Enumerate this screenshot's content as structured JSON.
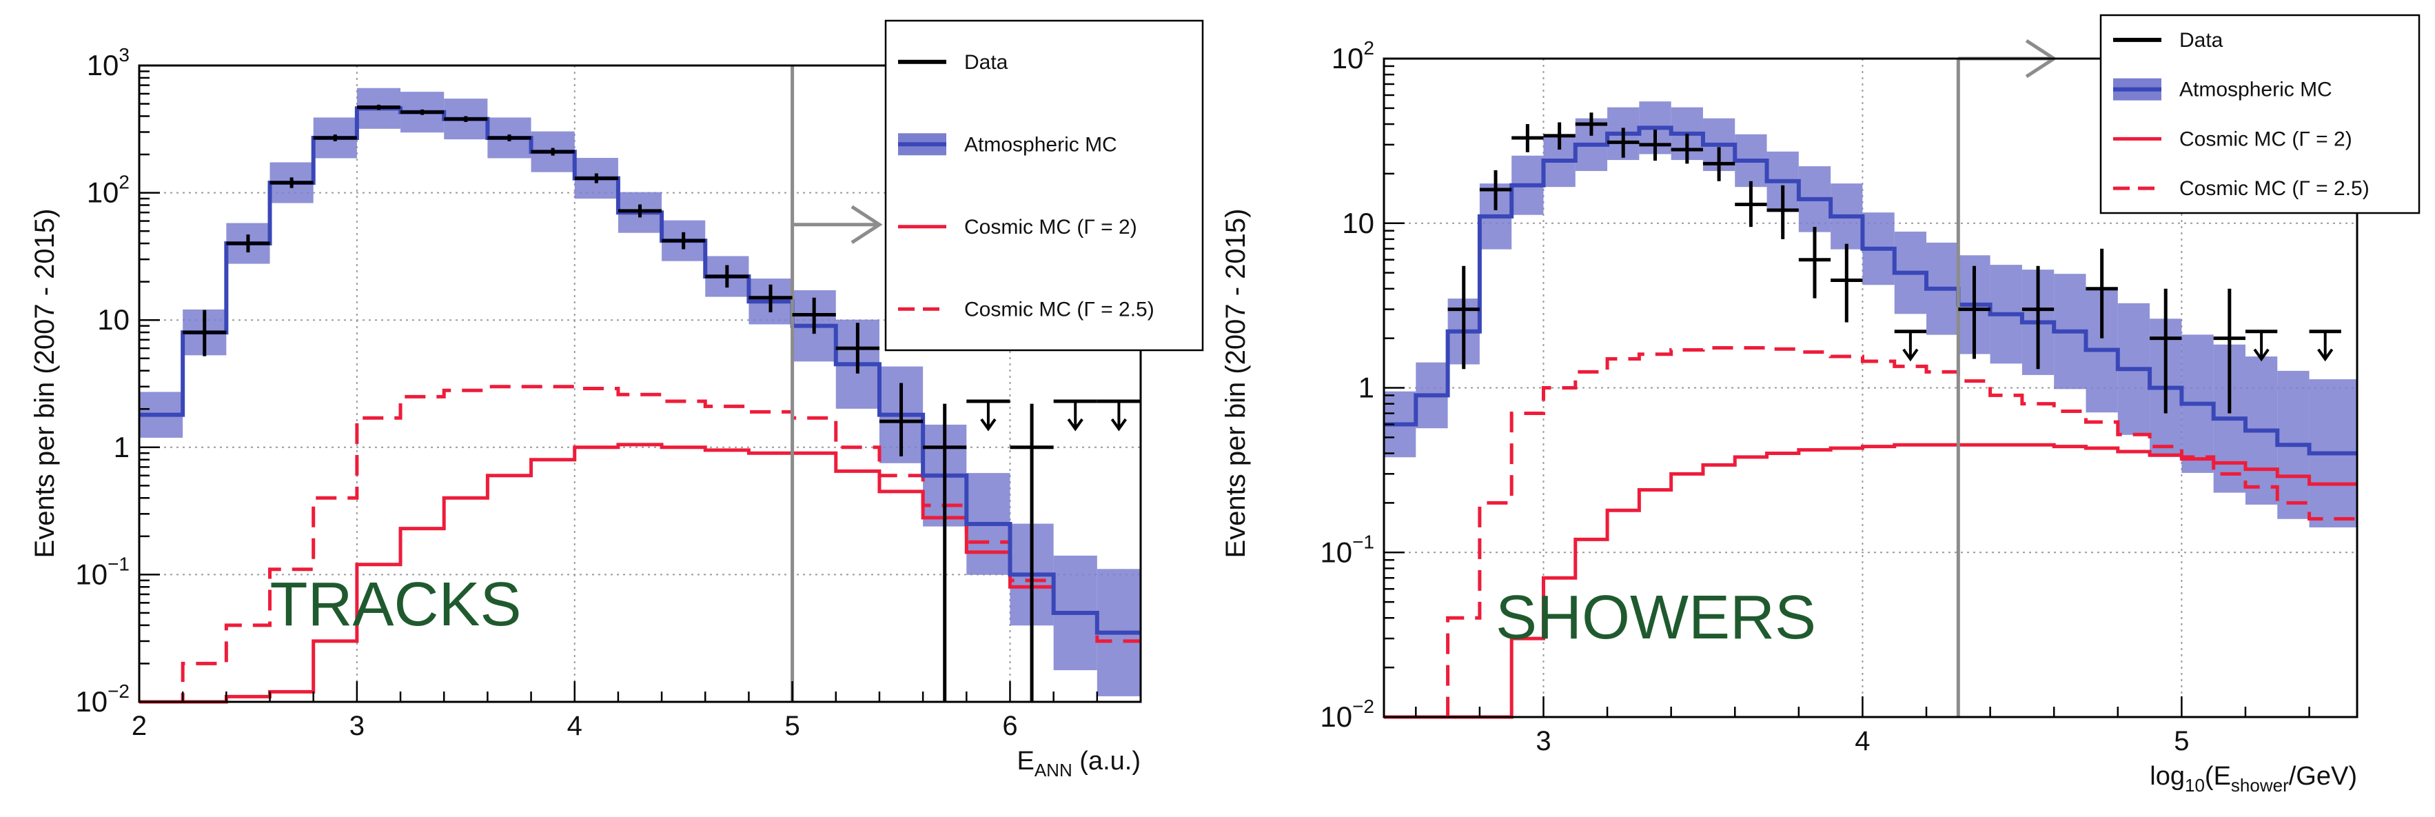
{
  "colors": {
    "data": "#000000",
    "atmo_line": "#3a47b8",
    "atmo_band": "#7b7fcf",
    "cosmic": "#ee1c3a",
    "grid": "#9a9a9a",
    "arrow": "#8c8c8c",
    "label_green": "#1f5a2e"
  },
  "chart_data": [
    {
      "name": "tracks",
      "type": "line",
      "ylabel": "Events per bin (2007 - 2015)",
      "xlabel_main": "E",
      "xlabel_sub": "ANN",
      "xlabel_tail": "  (a.u.)",
      "label": "TRACKS",
      "xlim": [
        2,
        6.6
      ],
      "ylim": [
        0.01,
        1000
      ],
      "yscale": "log",
      "xticks": [
        {
          "v": 2,
          "label": "2"
        },
        {
          "v": 3,
          "label": "3"
        },
        {
          "v": 4,
          "label": "4"
        },
        {
          "v": 5,
          "label": "5"
        },
        {
          "v": 6,
          "label": "6"
        }
      ],
      "yticks": [
        {
          "v": 0.01,
          "b": "10",
          "e": "−2"
        },
        {
          "v": 0.1,
          "b": "10",
          "e": "−1"
        },
        {
          "v": 1,
          "b": "1",
          "e": ""
        },
        {
          "v": 10,
          "b": "10",
          "e": ""
        },
        {
          "v": 100,
          "b": "10",
          "e": "2"
        },
        {
          "v": 1000,
          "b": "10",
          "e": "3"
        }
      ],
      "cut": 5.0,
      "arrow": [
        5.0,
        5.4,
        0.75
      ],
      "label_pos": [
        2.6,
        0.04
      ],
      "legend": {
        "entries": [
          {
            "label": "Data",
            "style": "data"
          },
          {
            "label": "Atmospheric MC",
            "style": "atmo"
          },
          {
            "label": "Cosmic MC (Γ = 2)",
            "style": "solid"
          },
          {
            "label": "Cosmic MC (Γ = 2.5)",
            "style": "dashed"
          }
        ]
      },
      "edges": [
        2.0,
        2.2,
        2.4,
        2.6,
        2.8,
        3.0,
        3.2,
        3.4,
        3.6,
        3.8,
        4.0,
        4.2,
        4.4,
        4.6,
        4.8,
        5.0,
        5.2,
        5.4,
        5.6,
        5.8,
        6.0,
        6.2,
        6.4,
        6.6
      ],
      "atmo": [
        1.8,
        8,
        40,
        120,
        270,
        460,
        430,
        380,
        270,
        210,
        130,
        70,
        42,
        22,
        14,
        9,
        4.5,
        1.8,
        0.6,
        0.25,
        0.1,
        0.05,
        0.035
      ],
      "atmo_err": [
        0.18,
        0.18,
        0.16,
        0.16,
        0.16,
        0.16,
        0.16,
        0.16,
        0.16,
        0.16,
        0.16,
        0.16,
        0.16,
        0.16,
        0.18,
        0.28,
        0.35,
        0.38,
        0.4,
        0.4,
        0.4,
        0.45,
        0.5
      ],
      "cosmic2": [
        0.01,
        0.01,
        0.011,
        0.012,
        0.03,
        0.12,
        0.23,
        0.4,
        0.6,
        0.8,
        1.0,
        1.05,
        1.0,
        0.95,
        0.9,
        0.9,
        0.65,
        0.45,
        0.28,
        0.15,
        0.08,
        0.05,
        0.035
      ],
      "cosmic25": [
        0.01,
        0.02,
        0.04,
        0.11,
        0.4,
        1.7,
        2.5,
        2.8,
        3.0,
        3.0,
        2.9,
        2.6,
        2.3,
        2.1,
        1.9,
        1.7,
        1.0,
        0.6,
        0.35,
        0.18,
        0.09,
        0.05,
        0.03
      ],
      "points": [
        {
          "x": 2.3,
          "y": 8,
          "lo": 5.2,
          "hi": 12
        },
        {
          "x": 2.5,
          "y": 40,
          "lo": 34,
          "hi": 47
        },
        {
          "x": 2.7,
          "y": 120,
          "lo": 109,
          "hi": 132
        },
        {
          "x": 2.9,
          "y": 270,
          "lo": 254,
          "hi": 287
        },
        {
          "x": 3.1,
          "y": 470,
          "lo": 448,
          "hi": 492
        },
        {
          "x": 3.3,
          "y": 430,
          "lo": 409,
          "hi": 451
        },
        {
          "x": 3.5,
          "y": 380,
          "lo": 360,
          "hi": 400
        },
        {
          "x": 3.7,
          "y": 270,
          "lo": 254,
          "hi": 287
        },
        {
          "x": 3.9,
          "y": 210,
          "lo": 196,
          "hi": 225
        },
        {
          "x": 4.1,
          "y": 130,
          "lo": 119,
          "hi": 142
        },
        {
          "x": 4.3,
          "y": 72,
          "lo": 64,
          "hi": 81
        },
        {
          "x": 4.5,
          "y": 42,
          "lo": 36,
          "hi": 49
        },
        {
          "x": 4.7,
          "y": 22,
          "lo": 18,
          "hi": 27
        },
        {
          "x": 4.9,
          "y": 15,
          "lo": 11.5,
          "hi": 19
        },
        {
          "x": 5.1,
          "y": 11,
          "lo": 7.8,
          "hi": 15
        },
        {
          "x": 5.3,
          "y": 6,
          "lo": 3.8,
          "hi": 9.5
        },
        {
          "x": 5.5,
          "y": 1.6,
          "lo": 0.85,
          "hi": 3.2
        },
        {
          "x": 5.7,
          "y": 1,
          "lo": 0.01,
          "hi": 2.2
        },
        {
          "x": 6.1,
          "y": 1,
          "lo": 0.01,
          "hi": 2.2
        }
      ],
      "limits": [
        {
          "x": 5.9,
          "y": 2.3
        },
        {
          "x": 6.3,
          "y": 2.3
        },
        {
          "x": 6.5,
          "y": 2.3
        }
      ]
    },
    {
      "name": "showers",
      "type": "line",
      "ylabel": "Events per bin (2007 - 2015)",
      "xlabel_main": "log",
      "xlabel_sub": "10",
      "xlabel_mid": "(E",
      "xlabel_sub2": "shower",
      "xlabel_tail": "/GeV)",
      "label": "SHOWERS",
      "xlim": [
        2.5,
        5.55
      ],
      "ylim": [
        0.01,
        100
      ],
      "yscale": "log",
      "xticks": [
        {
          "v": 3,
          "label": "3"
        },
        {
          "v": 4,
          "label": "4"
        },
        {
          "v": 5,
          "label": "5"
        }
      ],
      "yticks": [
        {
          "v": 0.01,
          "b": "10",
          "e": "−2"
        },
        {
          "v": 0.1,
          "b": "10",
          "e": "−1"
        },
        {
          "v": 1,
          "b": "1",
          "e": ""
        },
        {
          "v": 10,
          "b": "10",
          "e": ""
        },
        {
          "v": 100,
          "b": "10",
          "e": "2"
        }
      ],
      "cut": 4.3,
      "arrow": [
        4.3,
        4.6,
        1.08
      ],
      "label_pos": [
        2.85,
        0.03
      ],
      "legend": {
        "entries": [
          {
            "label": "Data",
            "style": "data"
          },
          {
            "label": "Atmospheric MC",
            "style": "atmo"
          },
          {
            "label": "Cosmic MC (Γ = 2)",
            "style": "solid"
          },
          {
            "label": "Cosmic MC (Γ = 2.5)",
            "style": "dashed"
          }
        ]
      },
      "edges": [
        2.5,
        2.6,
        2.7,
        2.8,
        2.9,
        3.0,
        3.1,
        3.2,
        3.3,
        3.4,
        3.5,
        3.6,
        3.7,
        3.8,
        3.9,
        4.0,
        4.1,
        4.2,
        4.3,
        4.4,
        4.5,
        4.6,
        4.7,
        4.8,
        4.9,
        5.0,
        5.1,
        5.2,
        5.3,
        5.4,
        5.55
      ],
      "atmo": [
        0.6,
        0.9,
        2.2,
        11,
        17,
        24,
        30,
        35,
        38,
        35,
        30,
        24,
        18,
        14,
        11,
        7,
        5,
        4,
        3.2,
        2.8,
        2.5,
        2.2,
        1.7,
        1.3,
        1.0,
        0.8,
        0.65,
        0.55,
        0.45,
        0.4
      ],
      "atmo_err": [
        0.2,
        0.2,
        0.2,
        0.2,
        0.18,
        0.16,
        0.16,
        0.16,
        0.16,
        0.16,
        0.16,
        0.16,
        0.18,
        0.2,
        0.2,
        0.22,
        0.25,
        0.28,
        0.3,
        0.3,
        0.32,
        0.35,
        0.38,
        0.4,
        0.42,
        0.42,
        0.45,
        0.45,
        0.45,
        0.45
      ],
      "cosmic2": [
        0.01,
        0.01,
        0.01,
        0.01,
        0.03,
        0.07,
        0.12,
        0.18,
        0.24,
        0.3,
        0.34,
        0.38,
        0.4,
        0.42,
        0.43,
        0.44,
        0.45,
        0.45,
        0.45,
        0.45,
        0.45,
        0.44,
        0.43,
        0.41,
        0.39,
        0.37,
        0.35,
        0.32,
        0.29,
        0.26
      ],
      "cosmic25": [
        0.01,
        0.01,
        0.04,
        0.2,
        0.7,
        1.0,
        1.25,
        1.5,
        1.6,
        1.7,
        1.75,
        1.75,
        1.72,
        1.65,
        1.55,
        1.45,
        1.35,
        1.25,
        1.1,
        0.9,
        0.8,
        0.72,
        0.62,
        0.52,
        0.44,
        0.38,
        0.3,
        0.25,
        0.2,
        0.16
      ],
      "points": [
        {
          "x": 2.75,
          "y": 3,
          "lo": 1.3,
          "hi": 5.5
        },
        {
          "x": 2.85,
          "y": 16,
          "lo": 12,
          "hi": 21
        },
        {
          "x": 2.95,
          "y": 33,
          "lo": 27,
          "hi": 40
        },
        {
          "x": 3.05,
          "y": 34,
          "lo": 28,
          "hi": 41
        },
        {
          "x": 3.15,
          "y": 40,
          "lo": 34,
          "hi": 47
        },
        {
          "x": 3.25,
          "y": 31,
          "lo": 25,
          "hi": 38
        },
        {
          "x": 3.35,
          "y": 30,
          "lo": 24,
          "hi": 37
        },
        {
          "x": 3.45,
          "y": 28,
          "lo": 23,
          "hi": 35
        },
        {
          "x": 3.55,
          "y": 23,
          "lo": 18,
          "hi": 29
        },
        {
          "x": 3.65,
          "y": 13,
          "lo": 9.5,
          "hi": 18
        },
        {
          "x": 3.75,
          "y": 12,
          "lo": 8,
          "hi": 17
        },
        {
          "x": 3.85,
          "y": 6,
          "lo": 3.5,
          "hi": 9.5
        },
        {
          "x": 3.95,
          "y": 4.5,
          "lo": 2.5,
          "hi": 7.5
        },
        {
          "x": 4.35,
          "y": 3,
          "lo": 1.5,
          "hi": 5.5
        },
        {
          "x": 4.55,
          "y": 3,
          "lo": 1.3,
          "hi": 5.5
        },
        {
          "x": 4.75,
          "y": 4,
          "lo": 2,
          "hi": 7
        },
        {
          "x": 4.95,
          "y": 2,
          "lo": 0.7,
          "hi": 4
        },
        {
          "x": 5.15,
          "y": 2,
          "lo": 0.7,
          "hi": 4
        }
      ],
      "limits": [
        {
          "x": 4.15,
          "y": 2.2
        },
        {
          "x": 5.25,
          "y": 2.2
        },
        {
          "x": 5.45,
          "y": 2.2
        }
      ]
    }
  ]
}
